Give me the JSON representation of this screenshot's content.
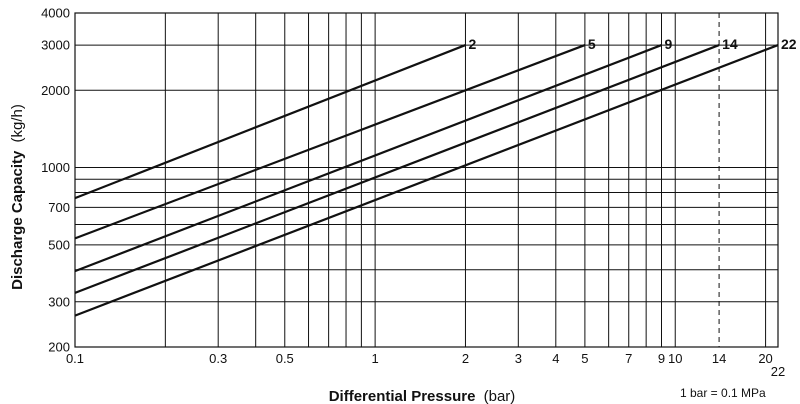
{
  "chart_data": {
    "type": "line",
    "x_scale": "log",
    "y_scale": "log",
    "xlim": [
      0.1,
      22
    ],
    "ylim": [
      200,
      4000
    ],
    "xlabel": {
      "text": "Differential Pressure",
      "unit": "(bar)"
    },
    "ylabel": {
      "text": "Discharge Capacity",
      "unit": "(kg/h)"
    },
    "x_ticks": [
      {
        "value": 0.1,
        "label": "0.1"
      },
      {
        "value": 0.3,
        "label": "0.3"
      },
      {
        "value": 0.5,
        "label": "0.5"
      },
      {
        "value": 1,
        "label": "1"
      },
      {
        "value": 2,
        "label": "2"
      },
      {
        "value": 3,
        "label": "3"
      },
      {
        "value": 4,
        "label": "4"
      },
      {
        "value": 5,
        "label": "5"
      },
      {
        "value": 7,
        "label": "7"
      },
      {
        "value": 9,
        "label": "9"
      },
      {
        "value": 10,
        "label": "10"
      },
      {
        "value": 14,
        "label": "14"
      },
      {
        "value": 20,
        "label": "20"
      },
      {
        "value": 22,
        "label": "22"
      }
    ],
    "x_gridlines": [
      0.1,
      0.2,
      0.3,
      0.4,
      0.5,
      0.6,
      0.7,
      0.8,
      0.9,
      1,
      2,
      3,
      4,
      5,
      6,
      7,
      8,
      9,
      10,
      20
    ],
    "x_dashed_gridline": 14,
    "y_ticks": [
      {
        "value": 200,
        "label": "200"
      },
      {
        "value": 300,
        "label": "300"
      },
      {
        "value": 500,
        "label": "500"
      },
      {
        "value": 700,
        "label": "700"
      },
      {
        "value": 1000,
        "label": "1000"
      },
      {
        "value": 2000,
        "label": "2000"
      },
      {
        "value": 3000,
        "label": "3000"
      },
      {
        "value": 4000,
        "label": "4000"
      }
    ],
    "y_gridlines": [
      200,
      300,
      400,
      500,
      600,
      700,
      800,
      900,
      1000,
      2000,
      3000,
      4000
    ],
    "grid": true,
    "series": [
      {
        "name": "2",
        "x": [
          0.1,
          2
        ],
        "y": [
          760,
          3000
        ]
      },
      {
        "name": "5",
        "x": [
          0.1,
          5
        ],
        "y": [
          530,
          3000
        ]
      },
      {
        "name": "9",
        "x": [
          0.1,
          9
        ],
        "y": [
          395,
          3000
        ]
      },
      {
        "name": "14",
        "x": [
          0.1,
          14
        ],
        "y": [
          325,
          3000
        ]
      },
      {
        "name": "22",
        "x": [
          0.1,
          22
        ],
        "y": [
          265,
          3000
        ]
      }
    ],
    "note": "1 bar = 0.1 MPa",
    "line_color": "#111111",
    "grid_color": "#111111"
  }
}
